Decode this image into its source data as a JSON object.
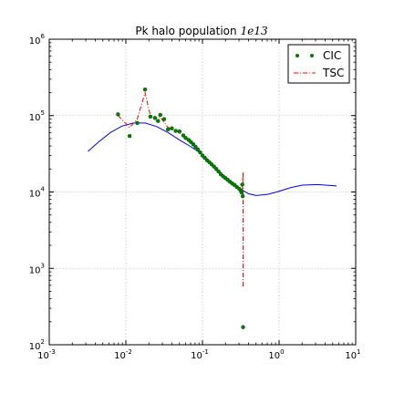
{
  "chart_data": {
    "type": "scatter",
    "title": "Pk halo population",
    "title_suffix": "1e13",
    "xlabel": "",
    "ylabel": "",
    "xscale": "log",
    "yscale": "log",
    "xlim": [
      0.001,
      10
    ],
    "ylim": [
      100,
      1000000
    ],
    "grid": true,
    "legend_position": "top-right",
    "x_ticks": [
      {
        "value": 0.001,
        "base": "10",
        "exp": "-3"
      },
      {
        "value": 0.01,
        "base": "10",
        "exp": "-2"
      },
      {
        "value": 0.1,
        "base": "10",
        "exp": "-1"
      },
      {
        "value": 1,
        "base": "10",
        "exp": "0"
      },
      {
        "value": 10,
        "base": "10",
        "exp": "1"
      }
    ],
    "y_ticks": [
      {
        "value": 100,
        "base": "10",
        "exp": "2"
      },
      {
        "value": 1000,
        "base": "10",
        "exp": "3"
      },
      {
        "value": 10000,
        "base": "10",
        "exp": "4"
      },
      {
        "value": 100000,
        "base": "10",
        "exp": "5"
      },
      {
        "value": 1000000,
        "base": "10",
        "exp": "6"
      }
    ],
    "series": [
      {
        "name": "CIC",
        "style": "points",
        "color": "#007f00",
        "points": [
          [
            0.0079,
            104000
          ],
          [
            0.0112,
            54000
          ],
          [
            0.0141,
            80000
          ],
          [
            0.0178,
            220000
          ],
          [
            0.0209,
            97000
          ],
          [
            0.024,
            93000
          ],
          [
            0.0263,
            85000
          ],
          [
            0.0282,
            102000
          ],
          [
            0.0316,
            90000
          ],
          [
            0.0355,
            66000
          ],
          [
            0.0398,
            68000
          ],
          [
            0.0447,
            63000
          ],
          [
            0.0501,
            62000
          ],
          [
            0.0562,
            55000
          ],
          [
            0.0603,
            51000
          ],
          [
            0.0661,
            48000
          ],
          [
            0.0708,
            45000
          ],
          [
            0.0759,
            42000
          ],
          [
            0.0813,
            39000
          ],
          [
            0.0871,
            36000
          ],
          [
            0.0933,
            33000
          ],
          [
            0.1,
            30000
          ],
          [
            0.1072,
            28000
          ],
          [
            0.1148,
            26000
          ],
          [
            0.123,
            24500
          ],
          [
            0.1318,
            23000
          ],
          [
            0.1413,
            21500
          ],
          [
            0.1514,
            20000
          ],
          [
            0.1622,
            18500
          ],
          [
            0.1738,
            17000
          ],
          [
            0.1862,
            16000
          ],
          [
            0.1995,
            15200
          ],
          [
            0.2138,
            14400
          ],
          [
            0.2291,
            13600
          ],
          [
            0.2455,
            12900
          ],
          [
            0.263,
            12300
          ],
          [
            0.2818,
            11600
          ],
          [
            0.302,
            11000
          ],
          [
            0.3162,
            10400
          ],
          [
            0.3236,
            9900
          ],
          [
            0.3311,
            12500
          ],
          [
            0.335,
            8800
          ],
          [
            0.3388,
            170
          ]
        ]
      },
      {
        "name": "TSC",
        "style": "dashdot",
        "color": "#ff0000",
        "points": [
          [
            0.0079,
            100000
          ],
          [
            0.0112,
            70000
          ],
          [
            0.0141,
            90000
          ],
          [
            0.0178,
            200000
          ],
          [
            0.0209,
            100000
          ],
          [
            0.024,
            92000
          ],
          [
            0.0282,
            95000
          ],
          [
            0.0355,
            70000
          ],
          [
            0.0447,
            64000
          ],
          [
            0.0562,
            55000
          ],
          [
            0.0708,
            46000
          ],
          [
            0.0891,
            36000
          ],
          [
            0.1,
            30500
          ],
          [
            0.1259,
            24000
          ],
          [
            0.1585,
            19500
          ],
          [
            0.1995,
            15300
          ],
          [
            0.2512,
            12700
          ],
          [
            0.302,
            11200
          ],
          [
            0.3311,
            10500
          ],
          [
            0.3388,
            18000
          ],
          [
            0.3388,
            550
          ]
        ]
      },
      {
        "name": "",
        "style": "line",
        "color": "#0000ff",
        "points": [
          [
            0.0032,
            34000
          ],
          [
            0.0045,
            46000
          ],
          [
            0.0063,
            60000
          ],
          [
            0.0089,
            73000
          ],
          [
            0.0126,
            80000
          ],
          [
            0.0178,
            80000
          ],
          [
            0.0251,
            72000
          ],
          [
            0.0355,
            60000
          ],
          [
            0.0501,
            48000
          ],
          [
            0.0708,
            39000
          ],
          [
            0.1,
            31000
          ],
          [
            0.1413,
            22000
          ],
          [
            0.2,
            15500
          ],
          [
            0.2818,
            11700
          ],
          [
            0.3981,
            9500
          ],
          [
            0.5012,
            9000
          ],
          [
            0.7079,
            9300
          ],
          [
            1.0,
            10200
          ],
          [
            1.4125,
            11400
          ],
          [
            2.0,
            12300
          ],
          [
            3.1623,
            12500
          ],
          [
            4.4668,
            12200
          ],
          [
            5.6234,
            12000
          ]
        ]
      }
    ]
  }
}
